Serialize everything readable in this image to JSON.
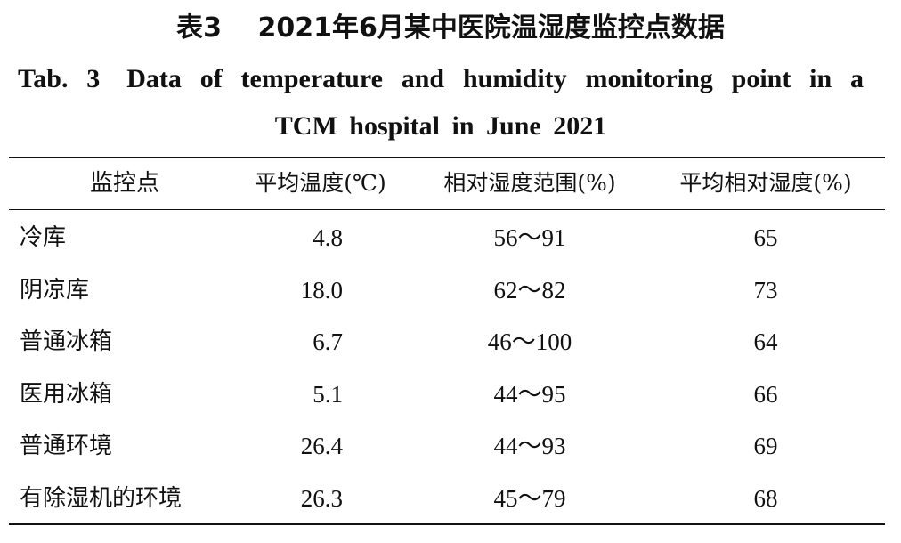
{
  "caption": {
    "cn": "表3  2021年6月某中医院温湿度监控点数据",
    "en_line1": "Tab. 3 Data of temperature and humidity monitoring point in a",
    "en_line2": "TCM hospital in June 2021"
  },
  "table": {
    "headers": {
      "point": "监控点",
      "avg_temp": "平均温度(℃)",
      "rh_range": "相对湿度范围(%)",
      "avg_rh": "平均相对湿度(%)"
    },
    "rows": [
      {
        "point": "冷库",
        "avg_temp": "4.8",
        "rh_range": "56～91",
        "avg_rh": "65"
      },
      {
        "point": "阴凉库",
        "avg_temp": "18.0",
        "rh_range": "62～82",
        "avg_rh": "73"
      },
      {
        "point": "普通冰箱",
        "avg_temp": "6.7",
        "rh_range": "46～100",
        "avg_rh": "64"
      },
      {
        "point": "医用冰箱",
        "avg_temp": "5.1",
        "rh_range": "44～95",
        "avg_rh": "66"
      },
      {
        "point": "普通环境",
        "avg_temp": "26.4",
        "rh_range": "44～93",
        "avg_rh": "69"
      },
      {
        "point": "有除湿机的环境",
        "avg_temp": "26.3",
        "rh_range": "45～79",
        "avg_rh": "68"
      }
    ]
  }
}
